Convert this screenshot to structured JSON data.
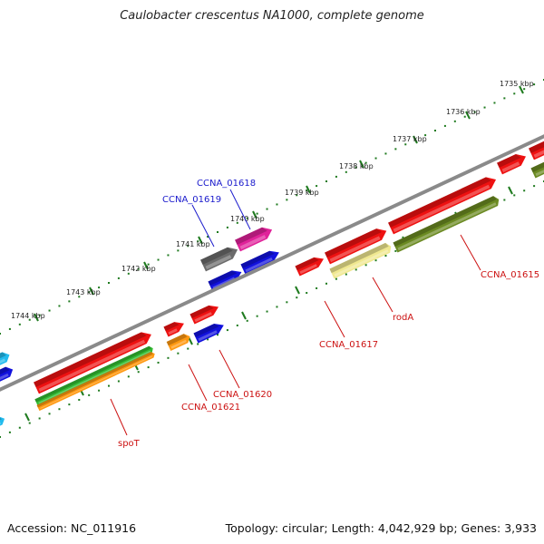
{
  "title": "Caulobacter crescentus NA1000, complete genome",
  "footer": {
    "accession": "Accession: NC_011916",
    "summary": "Topology: circular; Length: 4,042,929 bp; Genes: 3,933"
  },
  "ruler": {
    "ticks": [
      {
        "label": "1735 kbp"
      },
      {
        "label": "1736 kbp"
      },
      {
        "label": "1737 kbp"
      },
      {
        "label": "1738 kbp"
      },
      {
        "label": "1739 kbp"
      },
      {
        "label": "1740 kbp"
      },
      {
        "label": "1741 kbp"
      },
      {
        "label": "1742 kbp"
      },
      {
        "label": "1743 kbp"
      },
      {
        "label": "1744 kbp"
      }
    ]
  },
  "gene_labels": [
    {
      "text": "CCNA_01618",
      "color": "#1a1acc"
    },
    {
      "text": "CCNA_01619",
      "color": "#1a1acc"
    },
    {
      "text": "CCNA_01615",
      "color": "#cc1111"
    },
    {
      "text": "rodA",
      "color": "#cc1111"
    },
    {
      "text": "CCNA_01617",
      "color": "#cc1111"
    },
    {
      "text": "CCNA_01620",
      "color": "#cc1111"
    },
    {
      "text": "CCNA_01621",
      "color": "#cc1111"
    },
    {
      "text": "spoT",
      "color": "#cc1111"
    }
  ],
  "colors": {
    "backbone": "#8a8a8a",
    "tick": "#1e7a1e",
    "cds": "#ee1111",
    "blue": "#1111dd",
    "gray": "#6b6b6b",
    "magenta": "#e0229a",
    "olive": "#6b8a22",
    "pale_yellow": "#f0e890",
    "green": "#33bb33",
    "orange": "#ff9911",
    "cyan": "#22bbee"
  }
}
